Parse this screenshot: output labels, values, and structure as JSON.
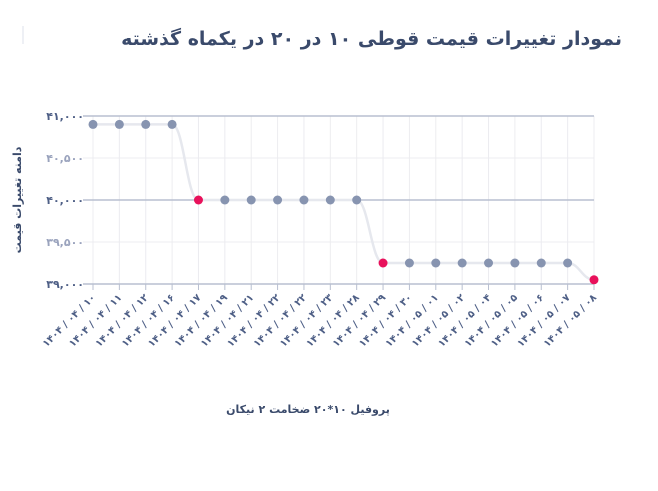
{
  "chart_data": {
    "type": "line",
    "title": "نمودار تغییرات قیمت قوطی ۱۰ در ۲۰ در یکماه گذشته",
    "xlabel": "پروفیل ۱۰*۲۰ ضخامت ۲ نیکان",
    "ylabel": "دامنه تغییرات قیمت",
    "categories": [
      "۱۴۰۴ / ۰۴ / ۱۰",
      "۱۴۰۴ / ۰۴ / ۱۱",
      "۱۴۰۴ / ۰۴ / ۱۲",
      "۱۴۰۴ / ۰۴ / ۱۶",
      "۱۴۰۴ / ۰۴ / ۱۷",
      "۱۴۰۴ / ۰۴ / ۱۹",
      "۱۴۰۴ / ۰۴ / ۲۱",
      "۱۴۰۴ / ۰۴ / ۲۲",
      "۱۴۰۴ / ۰۴ / ۲۲",
      "۱۴۰۴ / ۰۴ / ۲۳",
      "۱۴۰۴ / ۰۴ / ۲۸",
      "۱۴۰۴ / ۰۴ / ۲۹",
      "۱۴۰۴ / ۰۴ / ۳۰",
      "۱۴۰۴ / ۰۵ / ۰۱",
      "۱۴۰۴ / ۰۵ / ۰۲",
      "۱۴۰۴ / ۰۵ / ۰۴",
      "۱۴۰۴ / ۰۵ / ۰۵",
      "۱۴۰۴ / ۰۵ / ۰۶",
      "۱۴۰۴ / ۰۵ / ۰۷",
      "۱۴۰۴ / ۰۵ / ۰۸"
    ],
    "values": [
      40900,
      40900,
      40900,
      40900,
      40000,
      40000,
      40000,
      40000,
      40000,
      40000,
      40000,
      39250,
      39250,
      39250,
      39250,
      39250,
      39250,
      39250,
      39250,
      39050
    ],
    "highlight_indices": [
      4,
      11,
      19
    ],
    "ylim": [
      39000,
      41000
    ],
    "yticks": [
      {
        "value": 41000,
        "label": "۴۱,۰۰۰",
        "major": true
      },
      {
        "value": 40500,
        "label": "۴۰,۵۰۰",
        "major": false
      },
      {
        "value": 40000,
        "label": "۴۰,۰۰۰",
        "major": true
      },
      {
        "value": 39500,
        "label": "۳۹,۵۰۰",
        "major": false
      },
      {
        "value": 39000,
        "label": "۳۹,۰۰۰",
        "major": true
      }
    ],
    "grid": true,
    "colors": {
      "point": "#8794b0",
      "highlight": "#e8115b",
      "line": "#e6e8ee",
      "grid": "#ececf0",
      "axis": "#b8bfd0"
    }
  }
}
